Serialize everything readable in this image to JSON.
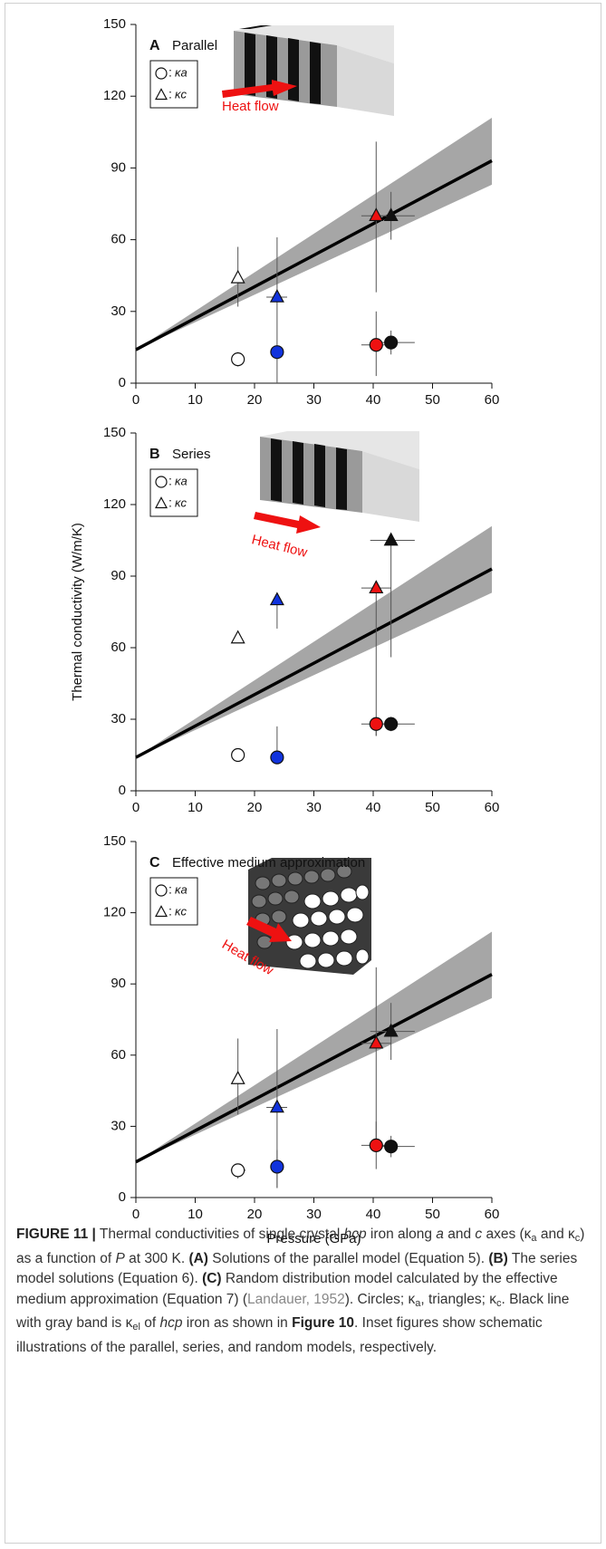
{
  "chart_data": [
    {
      "type": "scatter",
      "panel": "A",
      "title": "Parallel",
      "legend_separator": ":",
      "xlim": [
        0,
        60
      ],
      "xticks": [
        0,
        10,
        20,
        30,
        40,
        50,
        60
      ],
      "ylim": [
        0,
        150
      ],
      "yticks": [
        0,
        30,
        60,
        90,
        120,
        150
      ],
      "annotations": [
        "Heat flow"
      ],
      "fit": {
        "color": "#000000",
        "band_color": "#a6a6a6",
        "x": [
          0,
          60
        ],
        "values": [
          14,
          93
        ],
        "lower": [
          14,
          83
        ],
        "upper": [
          14,
          111
        ]
      },
      "series": [
        {
          "name": "κa",
          "marker": "circle",
          "colors": [
            "#ffffff",
            "#1133dd",
            "#ee1111",
            "#111111"
          ],
          "x": [
            17.2,
            23.8,
            40.5,
            43
          ],
          "values": [
            10,
            13,
            16,
            17
          ],
          "ymin": [
            7,
            null,
            3,
            12
          ],
          "ymax": [
            13,
            null,
            30,
            22
          ],
          "xmin": [
            null,
            null,
            38,
            39.5
          ],
          "xmax": [
            null,
            null,
            43,
            47
          ]
        },
        {
          "name": "κc",
          "marker": "triangle",
          "colors": [
            "#ffffff",
            "#1133dd",
            "#ee1111",
            "#111111"
          ],
          "x": [
            17.2,
            23.8,
            40.5,
            43
          ],
          "values": [
            44,
            36,
            70,
            70
          ],
          "ymin": [
            32,
            0,
            38,
            60
          ],
          "ymax": [
            57,
            61,
            101,
            80
          ],
          "xmin": [
            null,
            22,
            38,
            39.5
          ],
          "xmax": [
            null,
            25.5,
            43,
            47
          ]
        }
      ]
    },
    {
      "type": "scatter",
      "panel": "B",
      "title": "Series",
      "legend_separator": ":",
      "ylabel": "Thermal conductivity (W/m/K)",
      "xlim": [
        0,
        60
      ],
      "xticks": [
        0,
        10,
        20,
        30,
        40,
        50,
        60
      ],
      "ylim": [
        0,
        150
      ],
      "yticks": [
        0,
        30,
        60,
        90,
        120,
        150
      ],
      "annotations": [
        "Heat flow"
      ],
      "fit": {
        "color": "#000000",
        "band_color": "#a6a6a6",
        "x": [
          0,
          60
        ],
        "values": [
          14,
          93
        ],
        "lower": [
          14,
          83
        ],
        "upper": [
          14,
          111
        ]
      },
      "series": [
        {
          "name": "κa",
          "marker": "circle",
          "colors": [
            "#ffffff",
            "#1133dd",
            "#ee1111",
            "#111111"
          ],
          "x": [
            17.2,
            23.8,
            40.5,
            43
          ],
          "values": [
            15,
            14,
            28,
            28
          ],
          "ymin": [
            null,
            14,
            23,
            25
          ],
          "ymax": [
            null,
            27,
            28,
            31
          ],
          "xmin": [
            null,
            null,
            38,
            39.5
          ],
          "xmax": [
            null,
            null,
            43,
            47
          ]
        },
        {
          "name": "κc",
          "marker": "triangle",
          "colors": [
            "#ffffff",
            "#1133dd",
            "#ee1111",
            "#111111"
          ],
          "x": [
            17.2,
            23.8,
            40.5,
            43
          ],
          "values": [
            64,
            80,
            85,
            105
          ],
          "ymin": [
            null,
            68,
            23,
            56
          ],
          "ymax": [
            null,
            80,
            85,
            105
          ],
          "xmin": [
            null,
            null,
            38,
            39.5
          ],
          "xmax": [
            null,
            null,
            43,
            47
          ]
        }
      ]
    },
    {
      "type": "scatter",
      "panel": "C",
      "title": "Effective medium approximation",
      "legend_separator": ":",
      "xlabel": "Pressure (GPa)",
      "xlim": [
        0,
        60
      ],
      "xticks": [
        0,
        10,
        20,
        30,
        40,
        50,
        60
      ],
      "ylim": [
        0,
        150
      ],
      "yticks": [
        0,
        30,
        60,
        90,
        120,
        150
      ],
      "annotations": [
        "Heat flow"
      ],
      "fit": {
        "color": "#000000",
        "band_color": "#a6a6a6",
        "x": [
          0,
          60
        ],
        "values": [
          15,
          94
        ],
        "lower": [
          15,
          84
        ],
        "upper": [
          15,
          112
        ]
      },
      "series": [
        {
          "name": "κa",
          "marker": "circle",
          "colors": [
            "#ffffff",
            "#1133dd",
            "#ee1111",
            "#111111"
          ],
          "x": [
            17.2,
            23.8,
            40.5,
            43
          ],
          "values": [
            11.5,
            13,
            22,
            21.5
          ],
          "ymin": [
            8,
            4,
            12,
            17
          ],
          "ymax": [
            14,
            20,
            32,
            26
          ],
          "xmin": [
            16,
            null,
            38,
            39.5
          ],
          "xmax": [
            18.5,
            null,
            43,
            47
          ]
        },
        {
          "name": "κc",
          "marker": "triangle",
          "colors": [
            "#ffffff",
            "#1133dd",
            "#ee1111",
            "#111111"
          ],
          "x": [
            17.2,
            23.8,
            40.5,
            43
          ],
          "values": [
            50,
            38,
            65,
            70
          ],
          "ymin": [
            35,
            4,
            22,
            58
          ],
          "ymax": [
            67,
            71,
            97,
            82
          ],
          "xmin": [
            null,
            22,
            38,
            39.5
          ],
          "xmax": [
            null,
            25.5,
            43,
            47
          ]
        }
      ]
    }
  ],
  "caption": {
    "segments": [
      {
        "text": "FIGURE 11 |",
        "style": "bold"
      },
      {
        "text": " Thermal conductivities of single crystal ",
        "style": "plain"
      },
      {
        "text": "hcp",
        "style": "italic"
      },
      {
        "text": " iron along ",
        "style": "plain"
      },
      {
        "text": "a",
        "style": "italic"
      },
      {
        "text": " and ",
        "style": "plain"
      },
      {
        "text": "c",
        "style": "italic"
      },
      {
        "text": " axes (κ",
        "style": "plain"
      },
      {
        "text": "a",
        "style": "sub"
      },
      {
        "text": " and κ",
        "style": "plain"
      },
      {
        "text": "c",
        "style": "sub"
      },
      {
        "text": ") as a function of ",
        "style": "plain"
      },
      {
        "text": "P",
        "style": "italic"
      },
      {
        "text": " at 300 K. ",
        "style": "plain"
      },
      {
        "text": "(A)",
        "style": "bold"
      },
      {
        "text": " Solutions of the parallel model (Equation 5). ",
        "style": "plain"
      },
      {
        "text": "(B)",
        "style": "bold"
      },
      {
        "text": " The series model solutions (Equation 6). ",
        "style": "plain"
      },
      {
        "text": "(C)",
        "style": "bold"
      },
      {
        "text": " Random distribution model calculated by the effective medium approximation (Equation 7) (",
        "style": "plain"
      },
      {
        "text": "Landauer, 1952",
        "style": "link"
      },
      {
        "text": "). Circles; κ",
        "style": "plain"
      },
      {
        "text": "a",
        "style": "sub"
      },
      {
        "text": ", triangles; κ",
        "style": "plain"
      },
      {
        "text": "c",
        "style": "sub"
      },
      {
        "text": ". Black line with gray band is κ",
        "style": "plain"
      },
      {
        "text": "el",
        "style": "sub"
      },
      {
        "text": " of ",
        "style": "plain"
      },
      {
        "text": "hcp",
        "style": "italic"
      },
      {
        "text": " iron as shown in ",
        "style": "plain"
      },
      {
        "text": "Figure 10",
        "style": "bold"
      },
      {
        "text": ". Inset figures show schematic illustrations of the parallel, series, and random models, respectively.",
        "style": "plain"
      }
    ]
  }
}
